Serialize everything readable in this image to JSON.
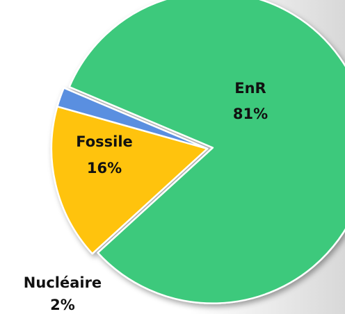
{
  "chart_data": {
    "type": "pie",
    "categories": [
      "EnR",
      "Fossile",
      "Nucléaire"
    ],
    "values": [
      81,
      16,
      2
    ],
    "value_labels": [
      "81%",
      "16%",
      "2%"
    ],
    "colors": [
      "#3cc97b",
      "#ffc30a",
      "#5a8fe0"
    ]
  }
}
